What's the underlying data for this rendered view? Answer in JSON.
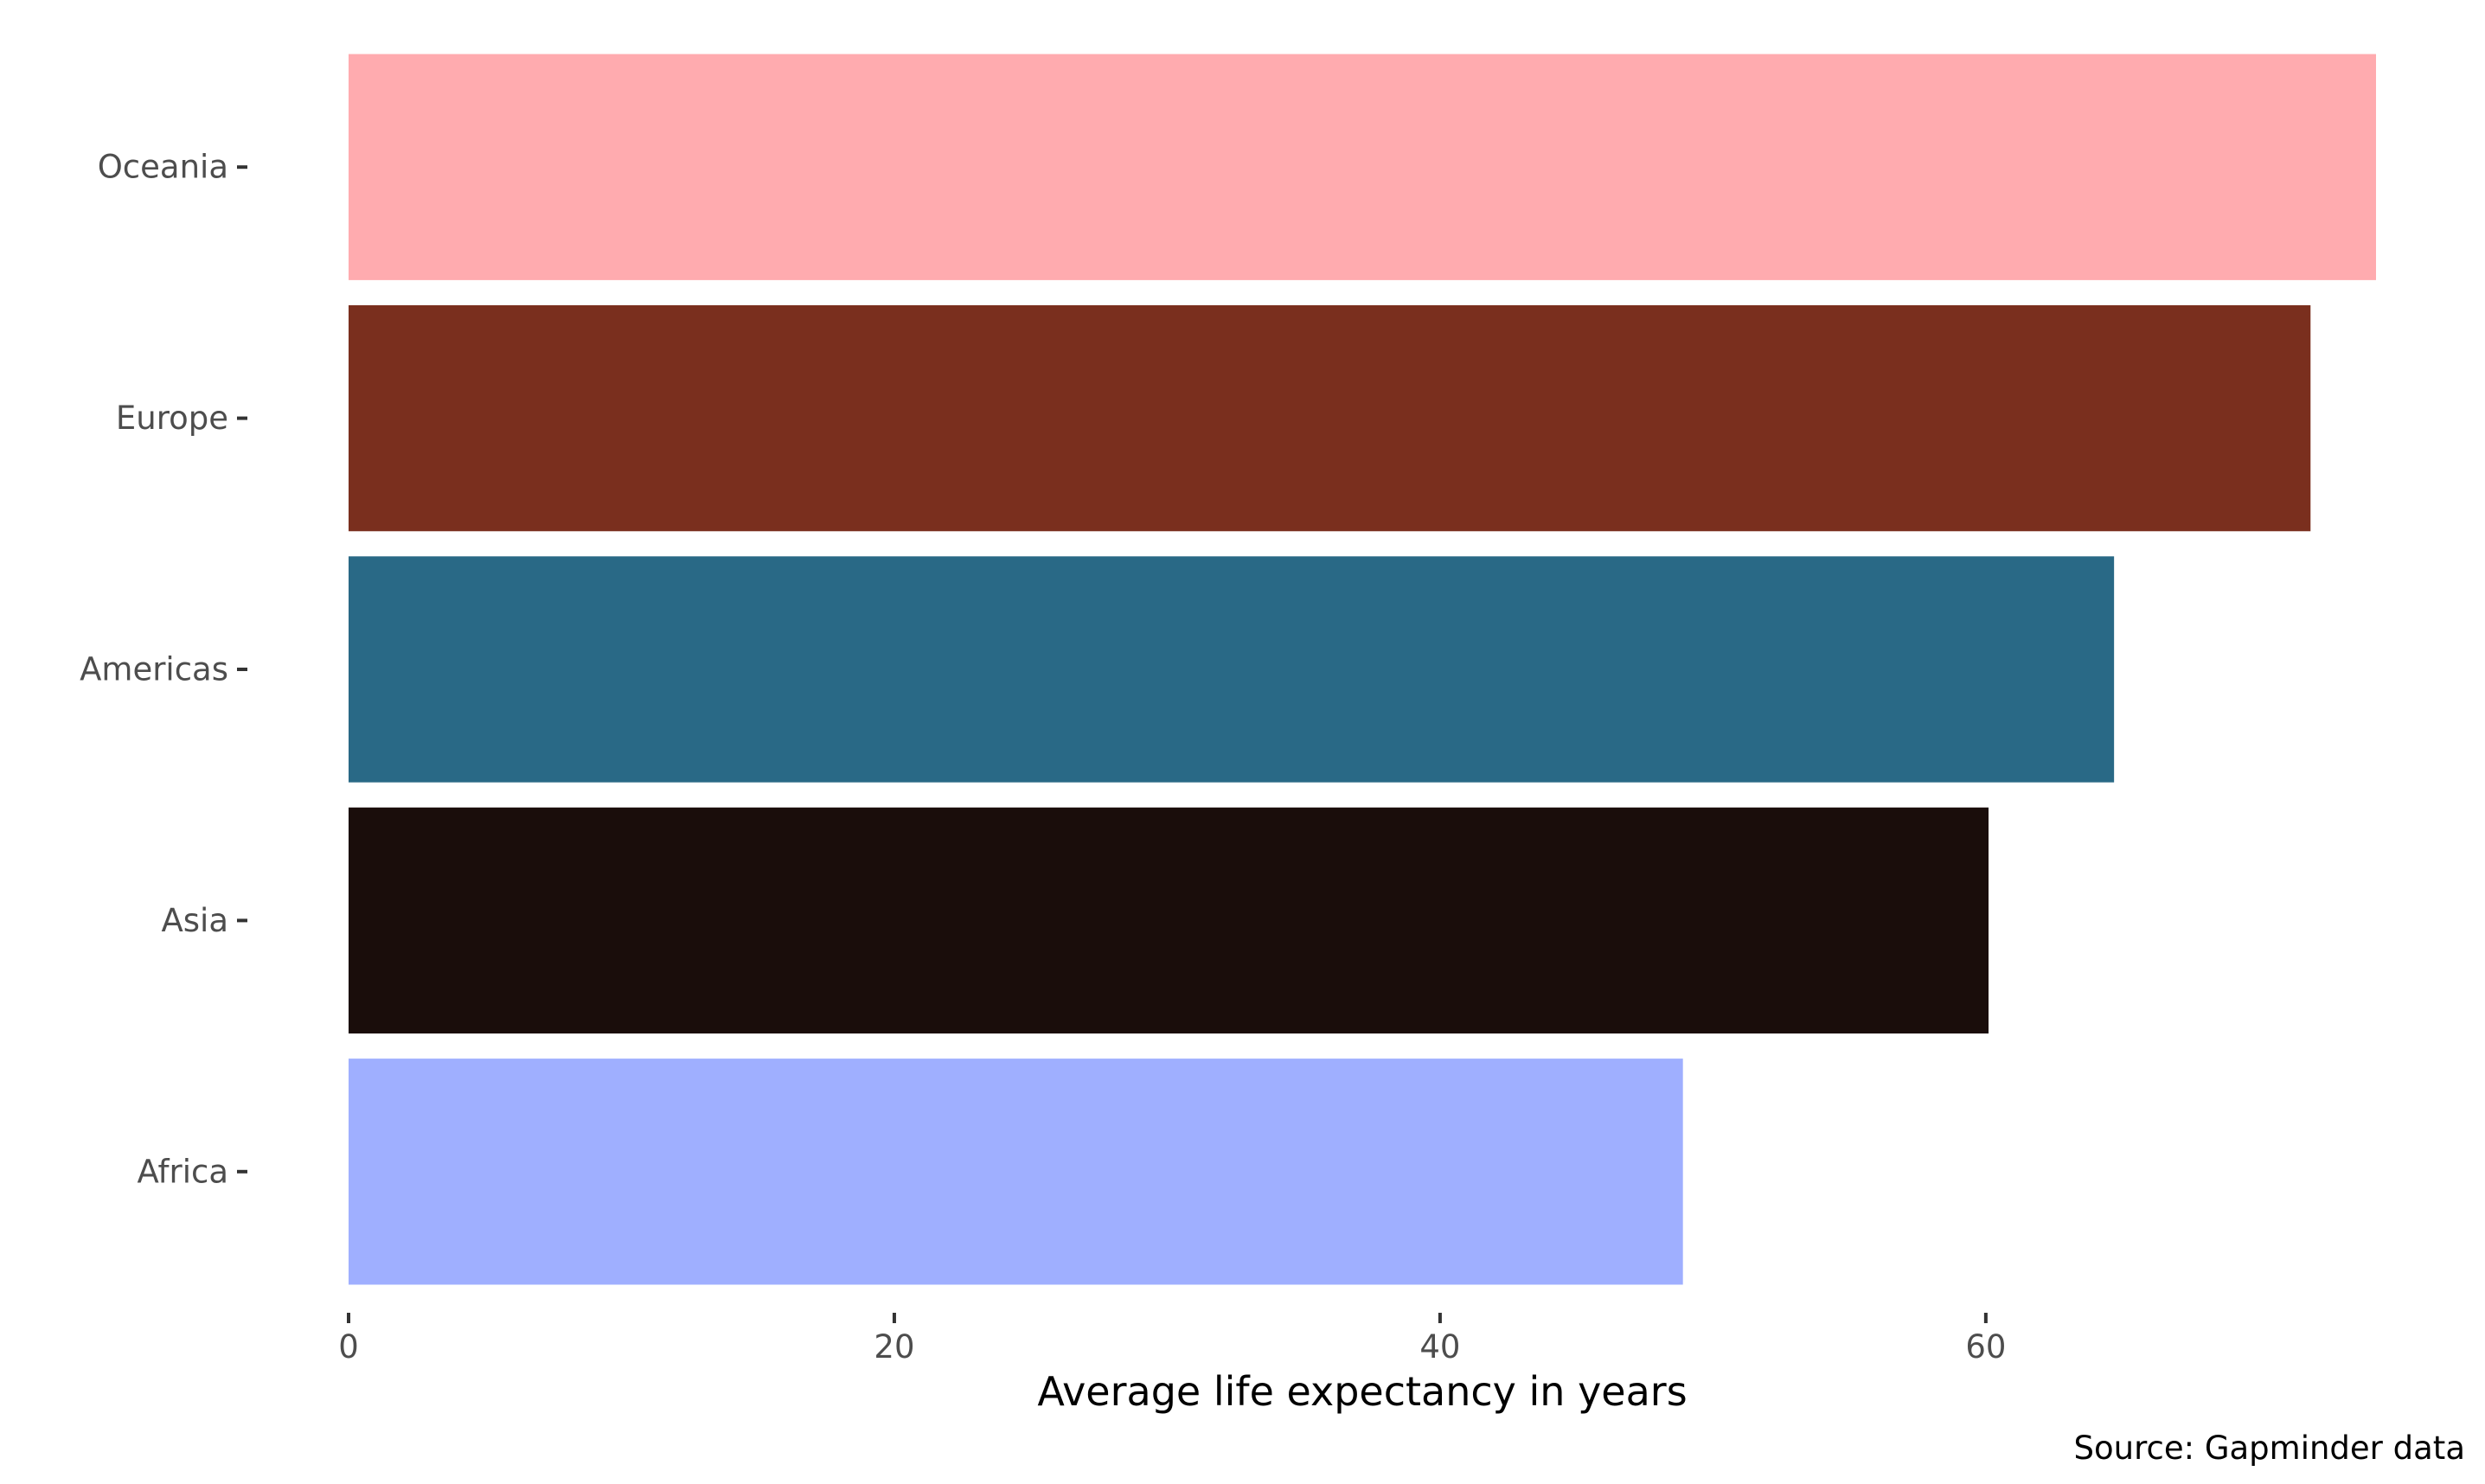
{
  "chart_data": {
    "type": "bar",
    "orientation": "horizontal",
    "categories": [
      "Oceania",
      "Europe",
      "Americas",
      "Asia",
      "Africa"
    ],
    "values": [
      74.3,
      71.9,
      64.7,
      60.1,
      48.9
    ],
    "colors": [
      "#ffabaf",
      "#7a2f1e",
      "#296986",
      "#1a0d0b",
      "#9fafff"
    ],
    "title": "",
    "xlabel": "Average life expectancy in years",
    "ylabel": "",
    "xticks": [
      0,
      20,
      40,
      60
    ],
    "xlim": [
      0,
      74.3
    ],
    "grid": false,
    "legend": "none",
    "caption": "Source: Gapminder data"
  }
}
